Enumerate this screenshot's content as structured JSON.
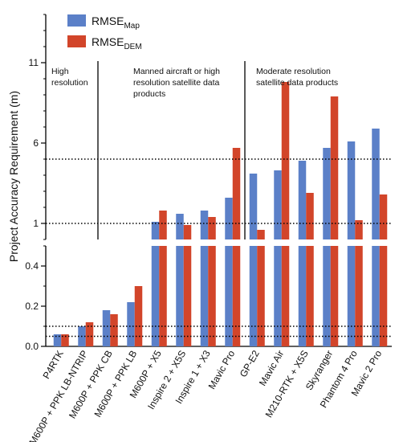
{
  "chart_data": {
    "type": "bar",
    "ylabel": "Project Accuracy Requirement (m)",
    "categories": [
      "P4RTK",
      "M600P + PPK LB-NTRIP",
      "M600P + PPK CB",
      "M600P + PPK LB",
      "M600P + X5",
      "Inspire 2 + X5S",
      "Inspire 1 + X3",
      "Mavic Pro",
      "GP-E2",
      "Mavic Air",
      "M210-RTK + X5S",
      "Skyranger",
      "Phantom 4 Pro",
      "Mavic 2 Pro"
    ],
    "series": [
      {
        "name": "RMSE",
        "subscript": "Map",
        "color": "#5b80c8",
        "values": [
          0.06,
          0.1,
          0.18,
          0.22,
          1.1,
          1.6,
          1.8,
          2.6,
          4.1,
          4.3,
          4.9,
          5.7,
          6.1,
          6.9
        ]
      },
      {
        "name": "RMSE",
        "subscript": "DEM",
        "color": "#d2452a",
        "values": [
          0.06,
          0.12,
          0.16,
          0.3,
          1.8,
          0.9,
          1.4,
          5.7,
          0.6,
          9.8,
          2.9,
          8.9,
          1.2,
          2.8
        ]
      }
    ],
    "upper_axis": {
      "range": [
        0,
        14
      ],
      "ticks": [
        "1",
        "6",
        "11"
      ],
      "tick_values": [
        1,
        6,
        11
      ]
    },
    "lower_axis": {
      "range": [
        0,
        0.5
      ],
      "ticks": [
        "0.0",
        "0.2",
        "0.4"
      ],
      "tick_values": [
        0,
        0.2,
        0.4
      ]
    },
    "reference_lines": {
      "upper": [
        1,
        5
      ],
      "lower": [
        0.05,
        0.1
      ]
    },
    "region_labels": [
      {
        "lines": [
          "High",
          "resolution"
        ]
      },
      {
        "lines": [
          "Manned aircraft or high",
          "resolution satellite data",
          "products"
        ]
      },
      {
        "lines": [
          "Moderate resolution",
          "satellite data products"
        ]
      }
    ],
    "region_dividers_after": [
      1,
      7
    ],
    "legend": "top-left"
  }
}
